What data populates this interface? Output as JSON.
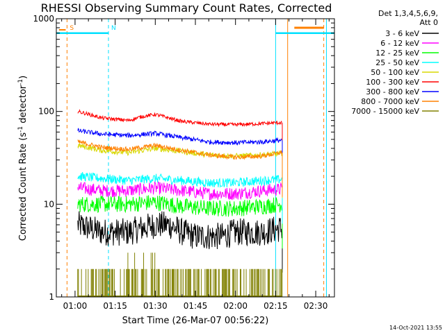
{
  "chart_data": {
    "type": "line",
    "title": "RHESSI Observing Summary Count Rates, Corrected",
    "xlabel": "Start Time (26-Mar-07 00:56:22)",
    "ylabel_main": "Corrected Count Rate (s",
    "ylabel_sup1": "-1",
    "ylabel_mid": " detector",
    "ylabel_sup2": "-1",
    "ylabel_end": ")",
    "y_scale": "log",
    "ylim": [
      1,
      1000
    ],
    "xlim_minutes_after_0100": [
      -7,
      97
    ],
    "x_ticks": [
      "01:00",
      "01:15",
      "01:30",
      "01:45",
      "02:00",
      "02:15",
      "02:30"
    ],
    "y_ticks": [
      "1",
      "10",
      "100",
      "1000"
    ],
    "timestamp": "14-Oct-2021 13:55",
    "legend_header": [
      "Det 1,3,4,5,6,9,",
      "Att 0"
    ],
    "markers": [
      {
        "label": "S",
        "time_min": -3,
        "color": "#ff8000"
      },
      {
        "label": "N",
        "time_min": 12.5,
        "color": "#00e0ff"
      }
    ],
    "night_bars": [
      {
        "from_min": -7,
        "to_min": 12.5,
        "y": 700,
        "color": "#00e0ff"
      },
      {
        "from_min": 75,
        "to_min": 97,
        "y": 700,
        "color": "#00e0ff"
      }
    ],
    "saa_bar": {
      "from_min": 82,
      "to_min": 93,
      "y": 800,
      "color": "#ff8000"
    },
    "vlines": [
      {
        "time_min": -3,
        "color": "#ff8000",
        "dash": true
      },
      {
        "time_min": 12.5,
        "color": "#00e0ff",
        "dash": true
      },
      {
        "time_min": 75,
        "color": "#00e0ff",
        "dash": false
      },
      {
        "time_min": 79.5,
        "color": "#ff8000",
        "dash": false
      },
      {
        "time_min": 93,
        "color": "#ff8000",
        "dash": true
      },
      {
        "time_min": 94,
        "color": "#00e0ff",
        "dash": false
      }
    ],
    "data_range_min": [
      1,
      77.5
    ],
    "series": [
      {
        "name": "3 - 6 keV",
        "color": "#000000",
        "x": [
          1,
          10,
          20,
          30,
          35,
          40,
          45,
          50,
          55,
          60,
          70,
          77
        ],
        "y": [
          6,
          5,
          5,
          6,
          6,
          5,
          4.5,
          4.5,
          4.5,
          5,
          5,
          5.5
        ],
        "noise": 0.15
      },
      {
        "name": "6 - 12 keV",
        "color": "#ff00ff",
        "x": [
          1,
          10,
          20,
          30,
          40,
          50,
          60,
          70,
          77
        ],
        "y": [
          15,
          14,
          14,
          15,
          14,
          13,
          13,
          14,
          14.5
        ],
        "noise": 0.07
      },
      {
        "name": "12 - 25 keV",
        "color": "#00ff00",
        "x": [
          1,
          10,
          20,
          30,
          40,
          50,
          60,
          70,
          77
        ],
        "y": [
          10,
          10,
          10,
          10.5,
          9.5,
          9,
          9,
          9.5,
          10
        ],
        "noise": 0.09
      },
      {
        "name": "25 - 50 keV",
        "color": "#00ffff",
        "x": [
          1,
          10,
          20,
          30,
          40,
          50,
          60,
          70,
          77
        ],
        "y": [
          20,
          19,
          18,
          19,
          18,
          17,
          17,
          18,
          18.5
        ],
        "noise": 0.05
      },
      {
        "name": "50 - 100 keV",
        "color": "#d8d800",
        "x": [
          1,
          10,
          20,
          30,
          40,
          50,
          60,
          70,
          77
        ],
        "y": [
          43,
          38,
          36,
          40,
          37,
          34,
          33,
          34,
          35
        ],
        "noise": 0.03
      },
      {
        "name": "100 - 300 keV",
        "color": "#ff0000",
        "x": [
          1,
          10,
          20,
          25,
          30,
          35,
          40,
          50,
          60,
          70,
          77
        ],
        "y": [
          100,
          85,
          80,
          88,
          93,
          85,
          78,
          73,
          72,
          74,
          76
        ],
        "noise": 0.02
      },
      {
        "name": "300 - 800 keV",
        "color": "#0000ff",
        "x": [
          1,
          10,
          20,
          30,
          40,
          50,
          60,
          70,
          77
        ],
        "y": [
          62,
          57,
          55,
          58,
          52,
          47,
          46,
          47,
          49
        ],
        "noise": 0.025
      },
      {
        "name": "800 - 7000 keV",
        "color": "#ff8000",
        "x": [
          1,
          10,
          20,
          30,
          40,
          50,
          60,
          70,
          77
        ],
        "y": [
          47,
          41,
          39,
          43,
          38,
          34,
          32,
          33,
          36
        ],
        "noise": 0.025
      },
      {
        "name": "7000 - 15000 keV",
        "color": "#808000",
        "x": [
          1,
          77
        ],
        "y": [
          1,
          1
        ],
        "noise": 0
      }
    ]
  }
}
